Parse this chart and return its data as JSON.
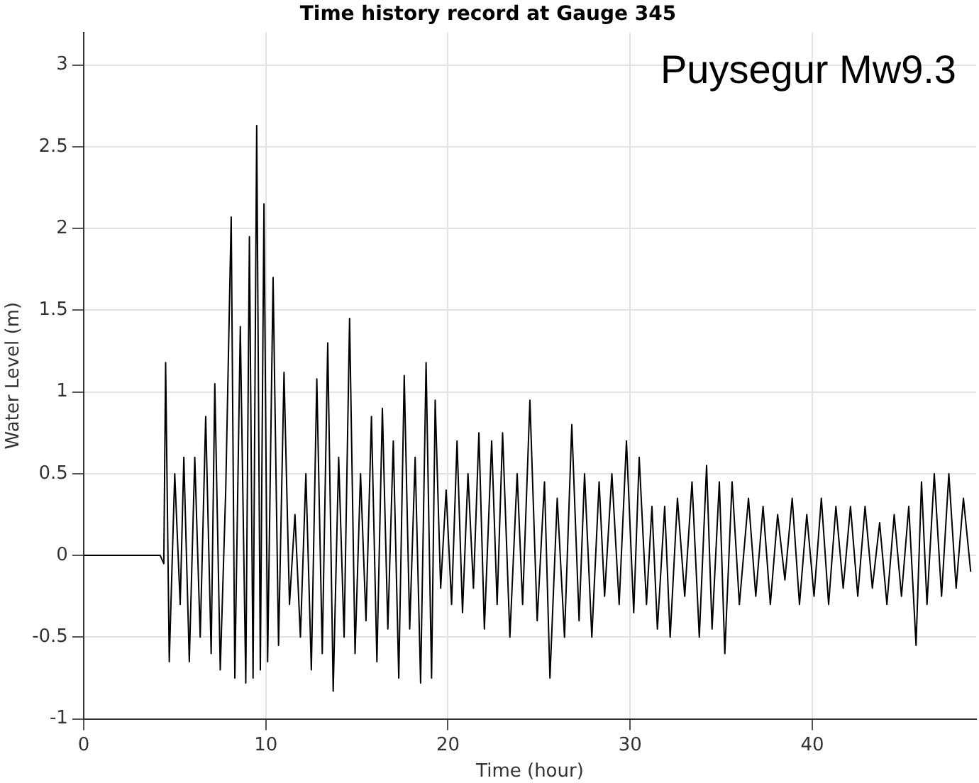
{
  "chart_data": {
    "type": "line",
    "title": "Time history record at Gauge 345",
    "xlabel": "Time (hour)",
    "ylabel": "Water Level (m)",
    "annotations": [
      "Puysegur Mw9.3"
    ],
    "xlim": [
      0,
      49
    ],
    "xticks": [
      0,
      10,
      20,
      30,
      40
    ],
    "ylim": [
      -1,
      3.2
    ],
    "yticks": [
      -1,
      -0.5,
      0,
      0.5,
      1,
      1.5,
      2,
      2.5,
      3
    ],
    "grid": true,
    "legend": false,
    "marker": "none",
    "line_style": "solid",
    "series": [
      {
        "color": "#000000",
        "x": [
          0,
          4.2,
          4.4,
          4.5,
          4.7,
          5.0,
          5.3,
          5.5,
          5.8,
          6.1,
          6.4,
          6.7,
          7.0,
          7.2,
          7.5,
          7.8,
          8.1,
          8.3,
          8.6,
          8.9,
          9.1,
          9.3,
          9.5,
          9.7,
          9.9,
          10.1,
          10.4,
          10.7,
          11.0,
          11.3,
          11.6,
          11.9,
          12.2,
          12.5,
          12.8,
          13.1,
          13.4,
          13.7,
          14.0,
          14.3,
          14.6,
          14.9,
          15.2,
          15.5,
          15.8,
          16.1,
          16.4,
          16.7,
          17.0,
          17.3,
          17.6,
          17.9,
          18.2,
          18.5,
          18.8,
          19.1,
          19.3,
          19.6,
          19.9,
          20.2,
          20.5,
          20.8,
          21.1,
          21.4,
          21.7,
          22.0,
          22.4,
          22.7,
          23.0,
          23.4,
          23.8,
          24.1,
          24.5,
          24.9,
          25.3,
          25.6,
          26.0,
          26.4,
          26.8,
          27.2,
          27.5,
          27.9,
          28.3,
          28.6,
          29.0,
          29.4,
          29.8,
          30.2,
          30.5,
          30.9,
          31.2,
          31.5,
          31.9,
          32.2,
          32.6,
          33.0,
          33.4,
          33.8,
          34.2,
          34.5,
          34.9,
          35.2,
          35.6,
          36.0,
          36.5,
          36.9,
          37.3,
          37.7,
          38.1,
          38.5,
          38.9,
          39.3,
          39.7,
          40.1,
          40.5,
          40.9,
          41.3,
          41.7,
          42.1,
          42.5,
          42.9,
          43.3,
          43.7,
          44.1,
          44.5,
          44.9,
          45.3,
          45.7,
          46.0,
          46.3,
          46.7,
          47.1,
          47.5,
          47.9,
          48.3,
          48.7
        ],
        "values": [
          0,
          0,
          -0.05,
          1.18,
          -0.65,
          0.5,
          -0.3,
          0.6,
          -0.65,
          0.6,
          -0.5,
          0.85,
          -0.6,
          1.05,
          -0.7,
          0.4,
          2.07,
          -0.75,
          1.4,
          -0.78,
          1.95,
          -0.75,
          2.63,
          -0.7,
          2.15,
          -0.65,
          1.7,
          -0.55,
          1.12,
          -0.3,
          0.25,
          -0.5,
          0.5,
          -0.7,
          1.08,
          -0.6,
          1.3,
          -0.83,
          0.6,
          -0.5,
          1.45,
          -0.6,
          0.5,
          -0.4,
          0.85,
          -0.65,
          0.9,
          -0.45,
          0.7,
          -0.75,
          1.1,
          -0.45,
          0.6,
          -0.78,
          1.18,
          -0.75,
          0.95,
          -0.2,
          0.4,
          -0.3,
          0.7,
          -0.35,
          0.5,
          -0.2,
          0.75,
          -0.45,
          0.7,
          -0.3,
          0.75,
          -0.5,
          0.5,
          -0.3,
          0.95,
          -0.4,
          0.45,
          -0.75,
          0.35,
          -0.5,
          0.8,
          -0.4,
          0.5,
          -0.5,
          0.45,
          -0.25,
          0.5,
          -0.3,
          0.7,
          -0.35,
          0.6,
          -0.3,
          0.3,
          -0.45,
          0.3,
          -0.5,
          0.35,
          -0.25,
          0.45,
          -0.5,
          0.55,
          -0.45,
          0.45,
          -0.6,
          0.45,
          -0.3,
          0.35,
          -0.25,
          0.3,
          -0.3,
          0.25,
          -0.15,
          0.35,
          -0.3,
          0.25,
          -0.25,
          0.35,
          -0.3,
          0.3,
          -0.2,
          0.3,
          -0.25,
          0.3,
          -0.2,
          0.2,
          -0.3,
          0.25,
          -0.25,
          0.3,
          -0.55,
          0.45,
          -0.3,
          0.5,
          -0.25,
          0.5,
          -0.2,
          0.35,
          -0.1
        ]
      }
    ]
  }
}
